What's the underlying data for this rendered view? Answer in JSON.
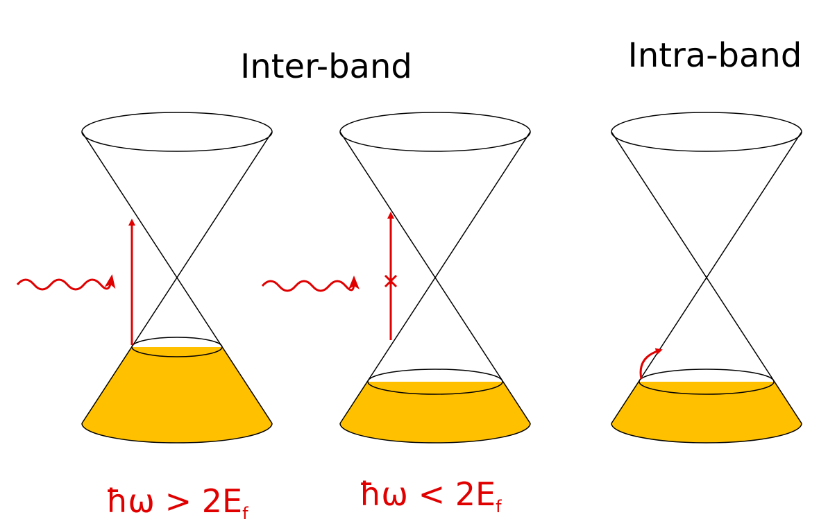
{
  "headings": {
    "inter": "Inter-band",
    "intra": "Intra-band"
  },
  "labels": [
    {
      "main": "ħω > 2E",
      "sub": "f"
    },
    {
      "main": "ħω < 2E",
      "sub": "f"
    }
  ]
}
